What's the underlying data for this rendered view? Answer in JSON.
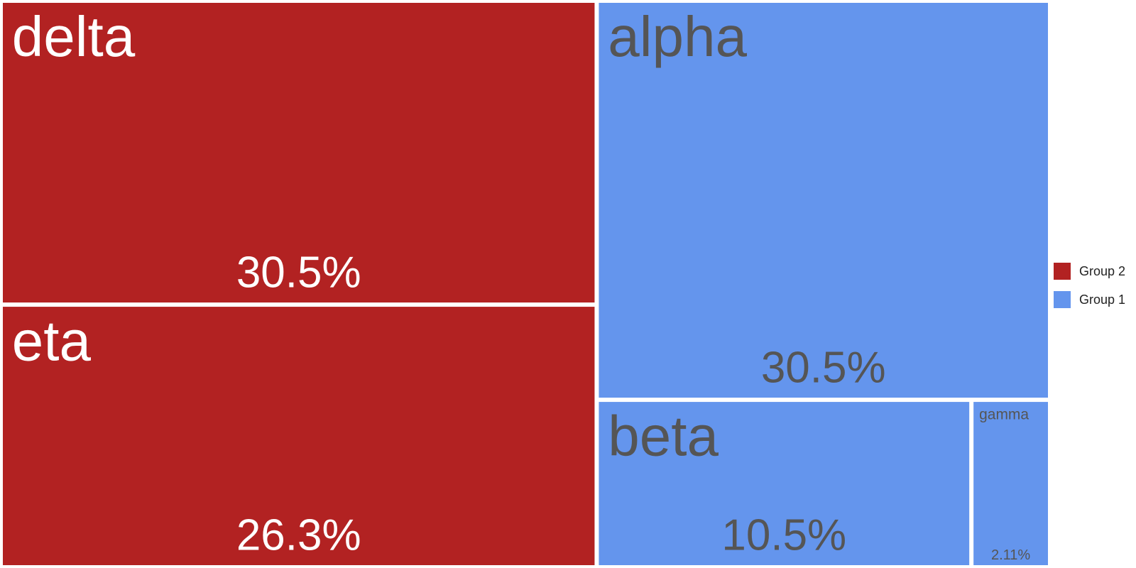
{
  "chart_data": {
    "type": "treemap",
    "title": "",
    "groups": [
      {
        "name": "Group 2",
        "color": "#b22222",
        "label_color": "#ffffff",
        "items": [
          {
            "name": "delta",
            "value": 30.5,
            "label": "30.5%"
          },
          {
            "name": "eta",
            "value": 26.3,
            "label": "26.3%"
          }
        ]
      },
      {
        "name": "Group 1",
        "color": "#6495ed",
        "label_color": "#555555",
        "items": [
          {
            "name": "alpha",
            "value": 30.5,
            "label": "30.5%"
          },
          {
            "name": "beta",
            "value": 10.5,
            "label": "10.5%"
          },
          {
            "name": "gamma",
            "value": 2.11,
            "label": "2.11%"
          }
        ]
      }
    ],
    "legend": {
      "position": "right",
      "entries": [
        {
          "name": "Group 2",
          "color": "#b22222"
        },
        {
          "name": "Group 1",
          "color": "#6495ed"
        }
      ]
    }
  }
}
